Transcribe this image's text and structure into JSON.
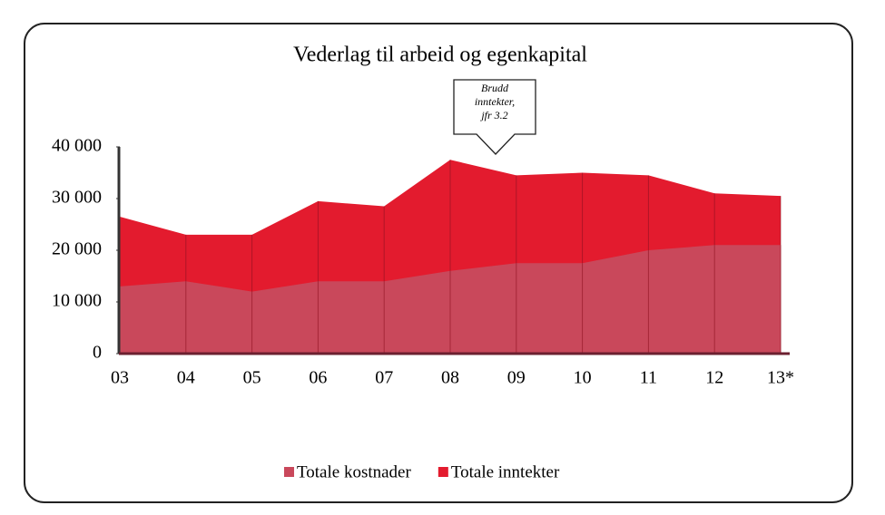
{
  "chart_data": {
    "type": "area",
    "title": "Vederlag til arbeid og egenkapital",
    "categories": [
      "03",
      "04",
      "05",
      "06",
      "07",
      "08",
      "09",
      "10",
      "11",
      "12",
      "13*"
    ],
    "series": [
      {
        "name": "Totale inntekter",
        "color": "#e31b2e",
        "values": [
          26500,
          23000,
          23000,
          29500,
          28500,
          37500,
          34500,
          35000,
          34500,
          31000,
          30500
        ]
      },
      {
        "name": "Totale kostnader",
        "color": "#c9485b",
        "values": [
          13000,
          14000,
          12000,
          14000,
          14000,
          16000,
          17500,
          17500,
          20000,
          21000,
          21000
        ]
      }
    ],
    "ylim": [
      0,
      40000
    ],
    "yticks": [
      0,
      {
        "value": 10000,
        "label": "10 000"
      },
      {
        "value": 20000,
        "label": "20 000"
      },
      {
        "value": 30000,
        "label": "30 000"
      },
      {
        "value": 40000,
        "label": "40 000"
      }
    ],
    "annotation": [
      "Brudd",
      "inntekter,",
      "jfr 3.2"
    ],
    "legend_order": [
      1,
      0
    ]
  }
}
